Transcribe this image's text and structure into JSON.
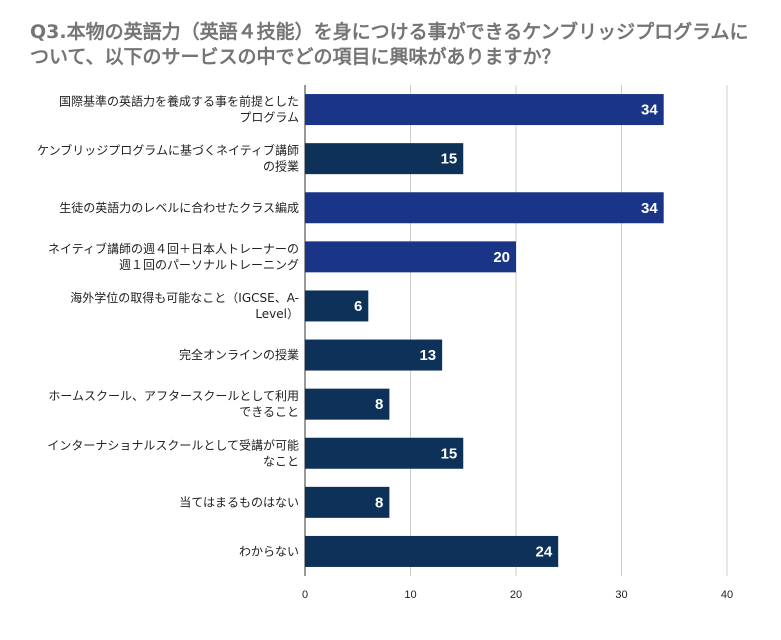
{
  "chart_data": {
    "type": "bar",
    "orientation": "horizontal",
    "title": "Q3.本物の英語力（英語４技能）を身につける事ができるケンブリッジプログラムについて、以下のサービスの中でどの項目に興味がありますか？",
    "categories": [
      [
        "国際基準の英語力を養成する事を前提とした",
        "プログラム"
      ],
      [
        "ケンブリッジプログラムに基づくネイティブ講師",
        "の授業"
      ],
      [
        "生徒の英語力のレベルに合わせたクラス編成"
      ],
      [
        "ネイティブ講師の週４回＋日本人トレーナーの",
        "週１回のパーソナルトレーニング"
      ],
      [
        "海外学位の取得も可能なこと（IGCSE、A-",
        "Level）"
      ],
      [
        "完全オンラインの授業"
      ],
      [
        "ホームスクール、アフタースクールとして利用",
        "できること"
      ],
      [
        "インターナショナルスクールとして受講が可能",
        "なこと"
      ],
      [
        "当てはまるものはない"
      ],
      [
        "わからない"
      ]
    ],
    "values": [
      34,
      15,
      34,
      20,
      6,
      13,
      8,
      15,
      8,
      24
    ],
    "bar_colors": [
      "#1a3587",
      "#0d3158",
      "#1a3587",
      "#1a3587",
      "#0d3158",
      "#0d3158",
      "#0d3158",
      "#0d3158",
      "#0d3158",
      "#0d3158"
    ],
    "xlim": [
      0,
      40
    ],
    "xticks": [
      0,
      10,
      20,
      30,
      40
    ],
    "xlabel": "",
    "ylabel": "",
    "grid": true,
    "legend": "none"
  }
}
